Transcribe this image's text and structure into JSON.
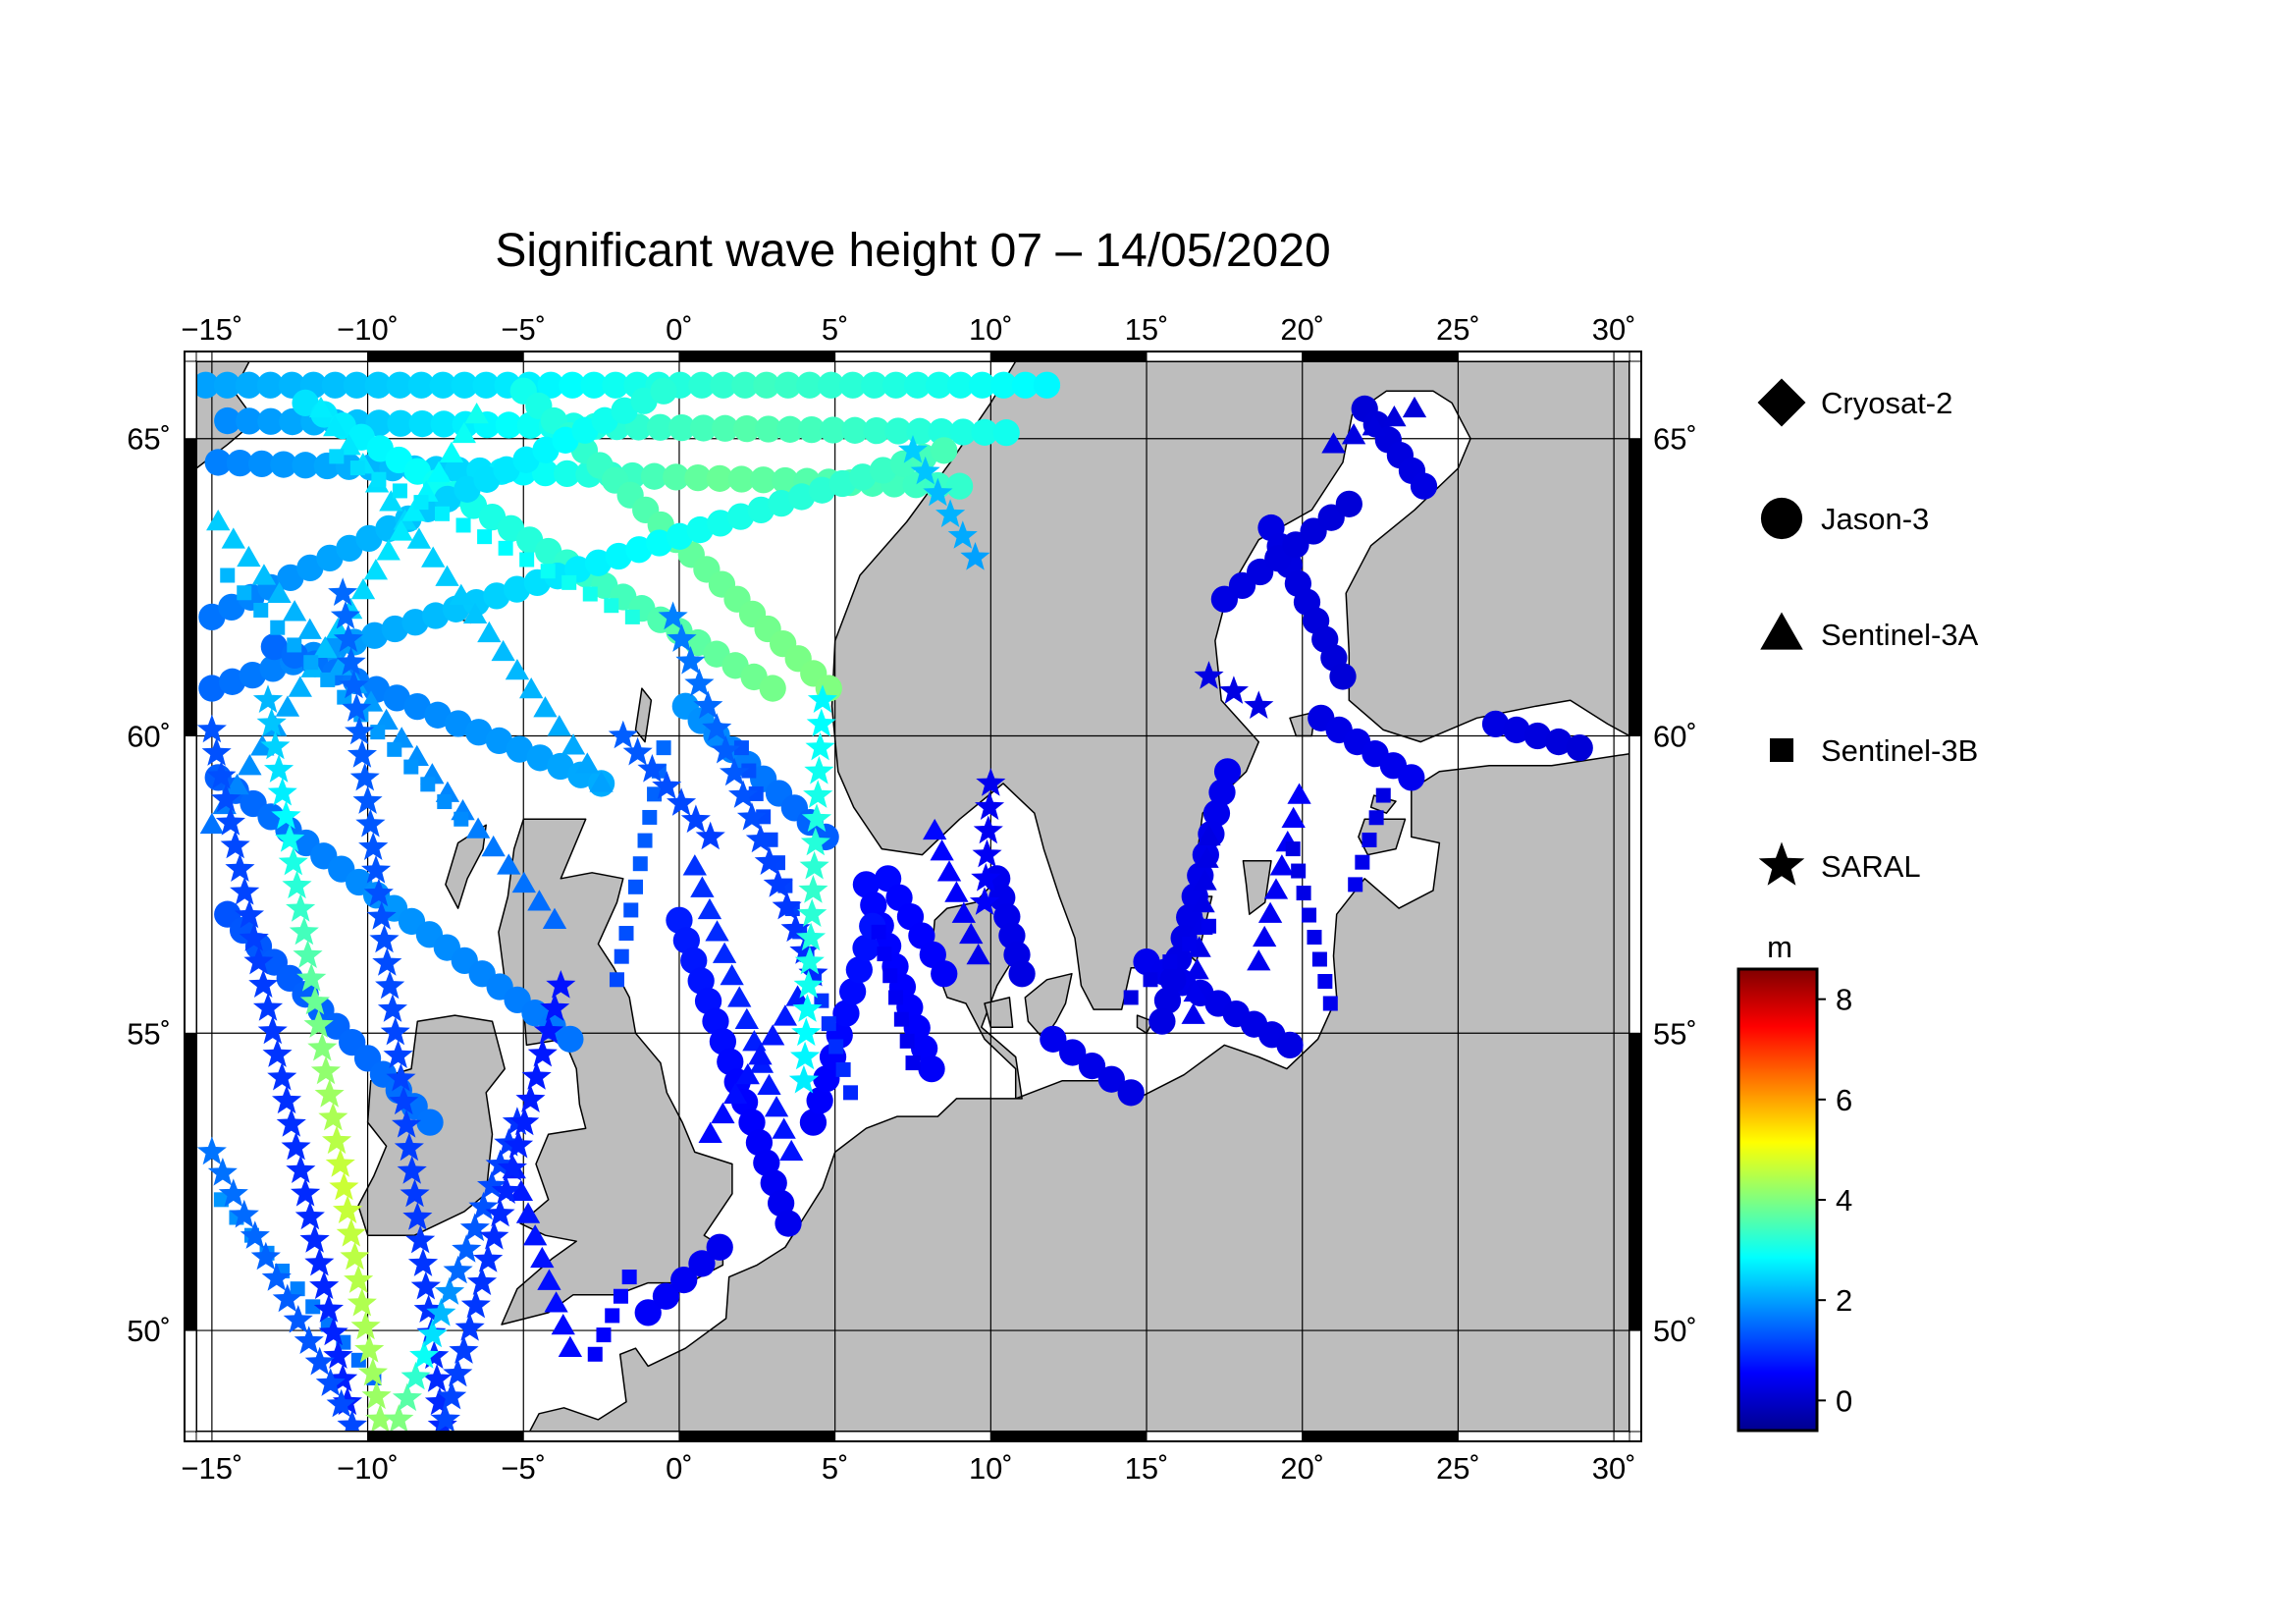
{
  "title": "Significant wave height 07 – 14/05/2020",
  "chart_data": {
    "type": "scatter",
    "projection": "lon-lat",
    "xlim": [
      -15.5,
      30.5
    ],
    "ylim": [
      48.3,
      66.3
    ],
    "x_ticks": [
      -15,
      -10,
      -5,
      0,
      5,
      10,
      15,
      20,
      25,
      30
    ],
    "x_tick_labels": [
      "−15˚",
      "−10˚",
      "−5˚",
      "0˚",
      "5˚",
      "10˚",
      "15˚",
      "20˚",
      "25˚",
      "30˚"
    ],
    "y_ticks": [
      50,
      55,
      60,
      65
    ],
    "y_tick_labels": [
      "50˚",
      "55˚",
      "60˚",
      "65˚"
    ],
    "grid": true,
    "land_color": "#bdbdbd",
    "sea_color": "#ffffff",
    "legend": {
      "placement": "right",
      "entries": [
        {
          "label": "Cryosat-2",
          "marker": "diamond"
        },
        {
          "label": "Jason-3",
          "marker": "circle"
        },
        {
          "label": "Sentinel-3A",
          "marker": "triangle"
        },
        {
          "label": "Sentinel-3B",
          "marker": "square"
        },
        {
          "label": "SARAL",
          "marker": "star"
        }
      ]
    },
    "colorbar": {
      "label": "m",
      "range": [
        -0.6,
        8.6
      ],
      "ticks": [
        0,
        2,
        4,
        6,
        8
      ],
      "tick_labels": [
        "0",
        "2",
        "4",
        "6",
        "8"
      ],
      "colormap": "jet"
    },
    "tracks": [
      {
        "sat": "Jason-3",
        "start": [
          -15.2,
          65.9
        ],
        "end": [
          11.8,
          65.9
        ],
        "swh": [
          2.0,
          2.6,
          3.4,
          2.8
        ]
      },
      {
        "sat": "Jason-3",
        "start": [
          -14.5,
          65.3
        ],
        "end": [
          10.5,
          65.1
        ],
        "swh": [
          1.8,
          2.8,
          3.6,
          3.0
        ]
      },
      {
        "sat": "Jason-3",
        "start": [
          -14.8,
          64.6
        ],
        "end": [
          9.0,
          64.2
        ],
        "swh": [
          1.7,
          2.5,
          3.8,
          3.3
        ]
      },
      {
        "sat": "Jason-3",
        "start": [
          -12.0,
          65.6
        ],
        "end": [
          3.0,
          60.8
        ],
        "swh": [
          2.6,
          3.2,
          3.9
        ]
      },
      {
        "sat": "Jason-3",
        "start": [
          -5.0,
          65.8
        ],
        "end": [
          4.8,
          60.8
        ],
        "swh": [
          3.0,
          3.7,
          4.0
        ]
      },
      {
        "sat": "Jason-3",
        "start": [
          -15.0,
          62.0
        ],
        "end": [
          -0.5,
          65.8
        ],
        "swh": [
          1.6,
          2.4,
          3.2
        ]
      },
      {
        "sat": "Jason-3",
        "start": [
          -15.0,
          60.8
        ],
        "end": [
          8.5,
          64.8
        ],
        "swh": [
          1.5,
          2.7,
          3.5
        ]
      },
      {
        "sat": "Jason-3",
        "start": [
          -14.8,
          59.3
        ],
        "end": [
          -3.5,
          54.9
        ],
        "swh": [
          1.4,
          1.9,
          1.6
        ]
      },
      {
        "sat": "Jason-3",
        "start": [
          -13.0,
          61.5
        ],
        "end": [
          -2.5,
          59.2
        ],
        "swh": [
          1.5,
          2.1
        ]
      },
      {
        "sat": "Jason-3",
        "start": [
          -14.5,
          57.0
        ],
        "end": [
          -8.0,
          53.5
        ],
        "swh": [
          1.3,
          1.6
        ]
      },
      {
        "sat": "Jason-3",
        "start": [
          0.2,
          60.5
        ],
        "end": [
          4.7,
          58.3
        ],
        "swh": [
          1.9,
          1.4
        ]
      },
      {
        "sat": "Jason-3",
        "start": [
          0.0,
          56.9
        ],
        "end": [
          3.5,
          51.8
        ],
        "swh": [
          0.8,
          0.6,
          0.4
        ]
      },
      {
        "sat": "Jason-3",
        "start": [
          6.0,
          57.5
        ],
        "end": [
          8.1,
          54.4
        ],
        "swh": [
          0.6,
          0.5
        ]
      },
      {
        "sat": "Jason-3",
        "start": [
          4.3,
          53.5
        ],
        "end": [
          6.2,
          56.8
        ],
        "swh": [
          0.5,
          0.7
        ]
      },
      {
        "sat": "Jason-3",
        "start": [
          6.7,
          57.6
        ],
        "end": [
          8.5,
          56.0
        ],
        "swh": [
          0.6,
          0.5
        ]
      },
      {
        "sat": "Jason-3",
        "start": [
          10.2,
          57.6
        ],
        "end": [
          11.0,
          56.0
        ],
        "swh": [
          0.4,
          0.3
        ]
      },
      {
        "sat": "Jason-3",
        "start": [
          12.0,
          54.9
        ],
        "end": [
          14.5,
          54.0
        ],
        "swh": [
          0.4,
          0.3
        ]
      },
      {
        "sat": "Jason-3",
        "start": [
          15.0,
          56.2
        ],
        "end": [
          19.6,
          54.8
        ],
        "swh": [
          0.4,
          0.3
        ]
      },
      {
        "sat": "Jason-3",
        "start": [
          17.6,
          59.4
        ],
        "end": [
          15.5,
          55.2
        ],
        "swh": [
          0.4,
          0.3
        ]
      },
      {
        "sat": "Jason-3",
        "start": [
          19.0,
          63.5
        ],
        "end": [
          21.3,
          61.0
        ],
        "swh": [
          0.3,
          0.2
        ]
      },
      {
        "sat": "Jason-3",
        "start": [
          17.5,
          62.3
        ],
        "end": [
          21.5,
          63.9
        ],
        "swh": [
          0.3,
          0.2
        ]
      },
      {
        "sat": "Jason-3",
        "start": [
          22.0,
          65.5
        ],
        "end": [
          23.9,
          64.2
        ],
        "swh": [
          0.2,
          0.3
        ]
      },
      {
        "sat": "Jason-3",
        "start": [
          20.6,
          60.3
        ],
        "end": [
          23.5,
          59.3
        ],
        "swh": [
          0.3,
          0.4
        ]
      },
      {
        "sat": "Jason-3",
        "start": [
          26.2,
          60.2
        ],
        "end": [
          28.9,
          59.8
        ],
        "swh": [
          0.3,
          0.2
        ]
      },
      {
        "sat": "Jason-3",
        "start": [
          -1.0,
          50.3
        ],
        "end": [
          1.3,
          51.4
        ],
        "swh": [
          0.5,
          0.4
        ]
      },
      {
        "sat": "Sentinel-3A",
        "start": [
          -14.8,
          63.6
        ],
        "end": [
          -4.0,
          56.9
        ],
        "swh": [
          2.4,
          1.9,
          1.5
        ]
      },
      {
        "sat": "Sentinel-3A",
        "start": [
          -11.5,
          65.5
        ],
        "end": [
          -2.5,
          59.2
        ],
        "swh": [
          2.7,
          2.0
        ]
      },
      {
        "sat": "Sentinel-3A",
        "start": [
          -15.0,
          58.5
        ],
        "end": [
          -6.5,
          65.4
        ],
        "swh": [
          1.6,
          2.4,
          3.0
        ]
      },
      {
        "sat": "Sentinel-3A",
        "start": [
          0.5,
          57.8
        ],
        "end": [
          3.6,
          53.0
        ],
        "swh": [
          1.0,
          0.7
        ]
      },
      {
        "sat": "Sentinel-3A",
        "start": [
          3.8,
          55.6
        ],
        "end": [
          1.0,
          53.3
        ],
        "swh": [
          0.8,
          0.6
        ]
      },
      {
        "sat": "Sentinel-3A",
        "start": [
          8.2,
          58.4
        ],
        "end": [
          9.6,
          56.3
        ],
        "swh": [
          0.6,
          0.4
        ]
      },
      {
        "sat": "Sentinel-3A",
        "start": [
          17.0,
          58.3
        ],
        "end": [
          16.5,
          55.3
        ],
        "swh": [
          0.3,
          0.4
        ]
      },
      {
        "sat": "Sentinel-3A",
        "start": [
          19.9,
          59.0
        ],
        "end": [
          18.6,
          56.2
        ],
        "swh": [
          0.5,
          0.4
        ]
      },
      {
        "sat": "Sentinel-3A",
        "start": [
          21.0,
          64.9
        ],
        "end": [
          23.6,
          65.5
        ],
        "swh": [
          0.3,
          0.2
        ]
      },
      {
        "sat": "Sentinel-3A",
        "start": [
          -3.5,
          49.7
        ],
        "end": [
          -5.3,
          52.7
        ],
        "swh": [
          0.6,
          0.8
        ]
      },
      {
        "sat": "Sentinel-3B",
        "start": [
          -14.5,
          62.7
        ],
        "end": [
          -7.0,
          58.6
        ],
        "swh": [
          2.2,
          1.8
        ]
      },
      {
        "sat": "Sentinel-3B",
        "start": [
          -11.0,
          64.7
        ],
        "end": [
          -1.5,
          62.0
        ],
        "swh": [
          2.5,
          3.1
        ]
      },
      {
        "sat": "Sentinel-3B",
        "start": [
          -2.0,
          55.9
        ],
        "end": [
          -0.5,
          59.8
        ],
        "swh": [
          1.2,
          1.5
        ]
      },
      {
        "sat": "Sentinel-3B",
        "start": [
          2.0,
          59.8
        ],
        "end": [
          5.5,
          54.0
        ],
        "swh": [
          1.3,
          0.9
        ]
      },
      {
        "sat": "Sentinel-3B",
        "start": [
          6.4,
          56.7
        ],
        "end": [
          7.5,
          54.5
        ],
        "swh": [
          0.5,
          0.4
        ]
      },
      {
        "sat": "Sentinel-3B",
        "start": [
          14.5,
          55.6
        ],
        "end": [
          17.0,
          56.8
        ],
        "swh": [
          0.3,
          0.4
        ]
      },
      {
        "sat": "Sentinel-3B",
        "start": [
          19.7,
          58.1
        ],
        "end": [
          20.9,
          55.5
        ],
        "swh": [
          0.3,
          0.4
        ]
      },
      {
        "sat": "Sentinel-3B",
        "start": [
          21.7,
          57.5
        ],
        "end": [
          22.6,
          59.0
        ],
        "swh": [
          0.4,
          0.3
        ]
      },
      {
        "sat": "Sentinel-3B",
        "start": [
          -14.7,
          52.2
        ],
        "end": [
          -9.8,
          49.2
        ],
        "swh": [
          1.9,
          1.5
        ]
      },
      {
        "sat": "Sentinel-3B",
        "start": [
          -2.7,
          49.6
        ],
        "end": [
          -1.6,
          50.9
        ],
        "swh": [
          0.5,
          0.6
        ]
      },
      {
        "sat": "SARAL",
        "start": [
          -15.0,
          60.1
        ],
        "end": [
          -10.5,
          48.4
        ],
        "swh": [
          1.3,
          1.0,
          0.8
        ]
      },
      {
        "sat": "SARAL",
        "start": [
          -13.2,
          60.6
        ],
        "end": [
          -9.6,
          48.5
        ],
        "swh": [
          2.2,
          3.5,
          4.7,
          4.2
        ]
      },
      {
        "sat": "SARAL",
        "start": [
          -10.8,
          62.4
        ],
        "end": [
          -7.6,
          48.4
        ],
        "swh": [
          1.5,
          1.2,
          0.9
        ]
      },
      {
        "sat": "SARAL",
        "start": [
          -15.0,
          53.0
        ],
        "end": [
          -10.5,
          48.4
        ],
        "swh": [
          1.6,
          1.2
        ]
      },
      {
        "sat": "SARAL",
        "start": [
          -9.0,
          48.5
        ],
        "end": [
          -5.2,
          53.5
        ],
        "swh": [
          4.0,
          1.5,
          1.0
        ]
      },
      {
        "sat": "SARAL",
        "start": [
          -7.5,
          48.5
        ],
        "end": [
          -3.8,
          55.8
        ],
        "swh": [
          1.2,
          0.9,
          0.7
        ]
      },
      {
        "sat": "SARAL",
        "start": [
          -0.2,
          62.0
        ],
        "end": [
          4.3,
          56.0
        ],
        "swh": [
          1.7,
          1.3,
          0.9
        ]
      },
      {
        "sat": "SARAL",
        "start": [
          4.6,
          60.6
        ],
        "end": [
          4.0,
          54.2
        ],
        "swh": [
          2.8,
          3.3,
          2.7
        ]
      },
      {
        "sat": "SARAL",
        "start": [
          -1.8,
          60.0
        ],
        "end": [
          1.0,
          58.3
        ],
        "swh": [
          1.4,
          1.1
        ]
      },
      {
        "sat": "SARAL",
        "start": [
          7.5,
          64.8
        ],
        "end": [
          9.5,
          63.0
        ],
        "swh": [
          2.4,
          2.0
        ]
      },
      {
        "sat": "SARAL",
        "start": [
          10.0,
          59.2
        ],
        "end": [
          9.8,
          57.2
        ],
        "swh": [
          0.4,
          0.5
        ]
      },
      {
        "sat": "SARAL",
        "start": [
          17.0,
          61.0
        ],
        "end": [
          18.6,
          60.5
        ],
        "swh": [
          0.3,
          0.3
        ]
      }
    ]
  }
}
